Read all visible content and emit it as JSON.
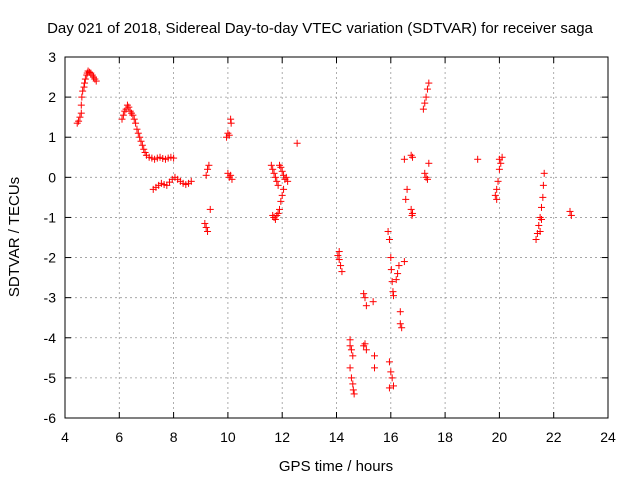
{
  "chart_data": {
    "type": "scatter",
    "title": "Day 021 of 2018, Sidereal Day-to-day VTEC variation (SDTVAR) for receiver saga",
    "xlabel": "GPS time / hours",
    "ylabel": "SDTVAR / TECUs",
    "xlim": [
      4,
      24
    ],
    "ylim": [
      -6,
      3
    ],
    "xticks": [
      "4",
      "6",
      "8",
      "10",
      "12",
      "14",
      "16",
      "18",
      "20",
      "22",
      "24"
    ],
    "yticks": [
      "3",
      "2",
      "1",
      "0",
      "-1",
      "-2",
      "-3",
      "-4",
      "-5",
      "-6"
    ],
    "grid": true,
    "marker": "plus",
    "marker_color": "#ff0000",
    "series": [
      {
        "name": "SDTVAR",
        "points": [
          [
            4.45,
            1.35
          ],
          [
            4.5,
            1.4
          ],
          [
            4.55,
            1.5
          ],
          [
            4.6,
            1.6
          ],
          [
            4.6,
            1.8
          ],
          [
            4.62,
            2.0
          ],
          [
            4.65,
            2.15
          ],
          [
            4.7,
            2.25
          ],
          [
            4.72,
            2.35
          ],
          [
            4.75,
            2.45
          ],
          [
            4.8,
            2.55
          ],
          [
            4.82,
            2.6
          ],
          [
            4.85,
            2.65
          ],
          [
            4.9,
            2.62
          ],
          [
            4.95,
            2.6
          ],
          [
            5.0,
            2.55
          ],
          [
            5.05,
            2.5
          ],
          [
            5.1,
            2.45
          ],
          [
            5.15,
            2.4
          ],
          [
            6.1,
            1.45
          ],
          [
            6.15,
            1.55
          ],
          [
            6.2,
            1.65
          ],
          [
            6.25,
            1.7
          ],
          [
            6.3,
            1.8
          ],
          [
            6.35,
            1.75
          ],
          [
            6.4,
            1.65
          ],
          [
            6.45,
            1.6
          ],
          [
            6.5,
            1.55
          ],
          [
            6.55,
            1.45
          ],
          [
            6.6,
            1.35
          ],
          [
            6.65,
            1.2
          ],
          [
            6.7,
            1.1
          ],
          [
            6.75,
            1.0
          ],
          [
            6.8,
            0.9
          ],
          [
            6.85,
            0.8
          ],
          [
            6.9,
            0.7
          ],
          [
            6.95,
            0.62
          ],
          [
            7.0,
            0.55
          ],
          [
            7.1,
            0.5
          ],
          [
            7.2,
            0.48
          ],
          [
            7.3,
            0.45
          ],
          [
            7.4,
            0.48
          ],
          [
            7.5,
            0.5
          ],
          [
            7.6,
            0.47
          ],
          [
            7.7,
            0.45
          ],
          [
            7.8,
            0.48
          ],
          [
            7.9,
            0.5
          ],
          [
            8.0,
            0.48
          ],
          [
            7.25,
            -0.3
          ],
          [
            7.35,
            -0.25
          ],
          [
            7.45,
            -0.2
          ],
          [
            7.55,
            -0.15
          ],
          [
            7.65,
            -0.18
          ],
          [
            7.75,
            -0.2
          ],
          [
            7.85,
            -0.12
          ],
          [
            7.95,
            -0.05
          ],
          [
            8.05,
            0.0
          ],
          [
            8.15,
            -0.05
          ],
          [
            8.25,
            -0.1
          ],
          [
            8.35,
            -0.15
          ],
          [
            8.45,
            -0.18
          ],
          [
            8.55,
            -0.15
          ],
          [
            8.65,
            -0.1
          ],
          [
            9.15,
            -1.15
          ],
          [
            9.2,
            -1.25
          ],
          [
            9.25,
            -1.35
          ],
          [
            9.2,
            0.05
          ],
          [
            9.25,
            0.2
          ],
          [
            9.3,
            0.3
          ],
          [
            9.35,
            -0.8
          ],
          [
            9.95,
            1.0
          ],
          [
            10.0,
            1.1
          ],
          [
            10.05,
            1.05
          ],
          [
            10.1,
            1.45
          ],
          [
            10.12,
            1.35
          ],
          [
            10.0,
            0.1
          ],
          [
            10.05,
            0.0
          ],
          [
            10.1,
            0.05
          ],
          [
            10.15,
            -0.05
          ],
          [
            11.6,
            0.3
          ],
          [
            11.65,
            0.2
          ],
          [
            11.7,
            0.1
          ],
          [
            11.75,
            0.0
          ],
          [
            11.8,
            -0.1
          ],
          [
            11.85,
            -0.2
          ],
          [
            11.9,
            0.3
          ],
          [
            11.95,
            0.25
          ],
          [
            12.0,
            0.15
          ],
          [
            12.05,
            0.05
          ],
          [
            12.1,
            -0.05
          ],
          [
            12.15,
            0.0
          ],
          [
            12.2,
            -0.1
          ],
          [
            11.65,
            -0.95
          ],
          [
            11.7,
            -1.0
          ],
          [
            11.75,
            -1.05
          ],
          [
            11.8,
            -0.95
          ],
          [
            11.85,
            -0.9
          ],
          [
            11.9,
            -0.8
          ],
          [
            11.95,
            -0.6
          ],
          [
            12.0,
            -0.45
          ],
          [
            12.05,
            -0.3
          ],
          [
            12.55,
            0.85
          ],
          [
            14.05,
            -1.95
          ],
          [
            14.1,
            -2.05
          ],
          [
            14.15,
            -2.2
          ],
          [
            14.2,
            -2.35
          ],
          [
            14.1,
            -1.85
          ],
          [
            14.5,
            -4.2
          ],
          [
            14.55,
            -4.3
          ],
          [
            14.6,
            -4.45
          ],
          [
            14.5,
            -4.75
          ],
          [
            14.55,
            -5.0
          ],
          [
            14.6,
            -5.15
          ],
          [
            14.62,
            -5.3
          ],
          [
            14.65,
            -5.4
          ],
          [
            14.5,
            -4.05
          ],
          [
            15.0,
            -2.9
          ],
          [
            15.05,
            -3.0
          ],
          [
            15.1,
            -3.2
          ],
          [
            15.05,
            -4.15
          ],
          [
            15.1,
            -4.3
          ],
          [
            15.0,
            -4.2
          ],
          [
            15.35,
            -3.1
          ],
          [
            15.4,
            -4.45
          ],
          [
            15.4,
            -4.75
          ],
          [
            15.9,
            -1.35
          ],
          [
            15.95,
            -1.55
          ],
          [
            16.0,
            -2.0
          ],
          [
            16.02,
            -2.3
          ],
          [
            16.05,
            -2.6
          ],
          [
            16.08,
            -2.85
          ],
          [
            16.1,
            -2.95
          ],
          [
            15.95,
            -4.6
          ],
          [
            16.0,
            -4.85
          ],
          [
            16.05,
            -5.0
          ],
          [
            16.1,
            -5.2
          ],
          [
            15.95,
            -5.25
          ],
          [
            16.2,
            -2.55
          ],
          [
            16.25,
            -2.4
          ],
          [
            16.3,
            -2.2
          ],
          [
            16.35,
            -3.35
          ],
          [
            16.35,
            -3.65
          ],
          [
            16.4,
            -3.75
          ],
          [
            16.5,
            -2.1
          ],
          [
            16.55,
            -0.55
          ],
          [
            16.6,
            -0.3
          ],
          [
            16.5,
            0.45
          ],
          [
            16.75,
            0.55
          ],
          [
            16.8,
            0.5
          ],
          [
            16.75,
            -0.8
          ],
          [
            16.8,
            -0.9
          ],
          [
            16.78,
            -0.95
          ],
          [
            17.2,
            1.7
          ],
          [
            17.25,
            1.85
          ],
          [
            17.3,
            2.0
          ],
          [
            17.35,
            2.2
          ],
          [
            17.4,
            2.35
          ],
          [
            17.25,
            0.1
          ],
          [
            17.3,
            0.0
          ],
          [
            17.35,
            -0.05
          ],
          [
            17.4,
            0.35
          ],
          [
            19.2,
            0.45
          ],
          [
            19.85,
            -0.45
          ],
          [
            19.9,
            -0.3
          ],
          [
            19.95,
            -0.1
          ],
          [
            20.0,
            0.2
          ],
          [
            20.05,
            0.35
          ],
          [
            20.1,
            0.5
          ],
          [
            19.9,
            -0.55
          ],
          [
            20.0,
            0.45
          ],
          [
            21.35,
            -1.55
          ],
          [
            21.4,
            -1.4
          ],
          [
            21.45,
            -1.2
          ],
          [
            21.5,
            -1.0
          ],
          [
            21.55,
            -0.75
          ],
          [
            21.6,
            -0.5
          ],
          [
            21.62,
            -0.2
          ],
          [
            21.65,
            0.1
          ],
          [
            21.5,
            -1.35
          ],
          [
            21.55,
            -1.05
          ],
          [
            22.6,
            -0.85
          ],
          [
            22.65,
            -0.95
          ]
        ]
      }
    ]
  }
}
